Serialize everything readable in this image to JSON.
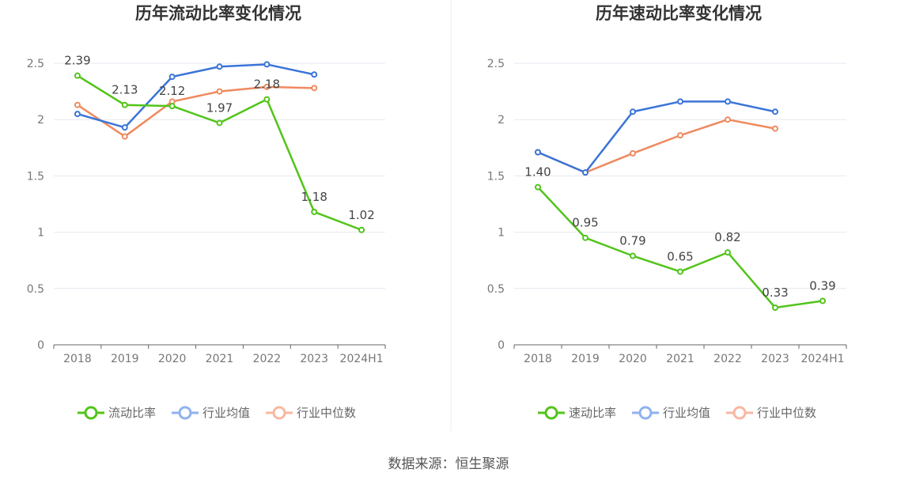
{
  "source_text": "数据来源：恒生聚源",
  "colors": {
    "company": "#52c41a",
    "industry_avg": "#3a74d8",
    "industry_median": "#ef8a5f",
    "legend_avg": "#8fb2ee",
    "legend_median": "#f9b7a1",
    "axis": "#666666",
    "grid": "#e6e9f0",
    "label": "#444444",
    "title": "#333333"
  },
  "chart_data": [
    {
      "type": "line",
      "title": "历年流动比率变化情况",
      "categories": [
        "2018",
        "2019",
        "2020",
        "2021",
        "2022",
        "2023",
        "2024H1"
      ],
      "ylim": [
        0,
        2.5
      ],
      "yticks": [
        "0",
        "0.5",
        "1",
        "1.5",
        "2",
        "2.5"
      ],
      "grid": true,
      "legend_position": "bottom",
      "series": [
        {
          "name": "流动比率",
          "color_key": "company",
          "legend_color_key": "company",
          "values": [
            2.39,
            2.13,
            2.12,
            1.97,
            2.18,
            1.18,
            1.02
          ],
          "labels": [
            "2.39",
            "2.13",
            "2.12",
            "1.97",
            "2.18",
            "1.18",
            "1.02"
          ]
        },
        {
          "name": "行业均值",
          "color_key": "industry_avg",
          "legend_color_key": "legend_avg",
          "values": [
            2.05,
            1.93,
            2.38,
            2.47,
            2.49,
            2.4,
            null
          ]
        },
        {
          "name": "行业中位数",
          "color_key": "industry_median",
          "legend_color_key": "legend_median",
          "values": [
            2.13,
            1.85,
            2.16,
            2.25,
            2.29,
            2.28,
            null
          ]
        }
      ]
    },
    {
      "type": "line",
      "title": "历年速动比率变化情况",
      "categories": [
        "2018",
        "2019",
        "2020",
        "2021",
        "2022",
        "2023",
        "2024H1"
      ],
      "ylim": [
        0,
        2.5
      ],
      "yticks": [
        "0",
        "0.5",
        "1",
        "1.5",
        "2",
        "2.5"
      ],
      "grid": true,
      "legend_position": "bottom",
      "series": [
        {
          "name": "速动比率",
          "color_key": "company",
          "legend_color_key": "company",
          "values": [
            1.4,
            0.95,
            0.79,
            0.65,
            0.82,
            0.33,
            0.39
          ],
          "labels": [
            "1.40",
            "0.95",
            "0.79",
            "0.65",
            "0.82",
            "0.33",
            "0.39"
          ]
        },
        {
          "name": "行业均值",
          "color_key": "industry_avg",
          "legend_color_key": "legend_avg",
          "values": [
            1.71,
            1.53,
            2.07,
            2.16,
            2.16,
            2.07,
            null
          ]
        },
        {
          "name": "行业中位数",
          "color_key": "industry_median",
          "legend_color_key": "legend_median",
          "values": [
            1.71,
            1.53,
            1.7,
            1.86,
            2.0,
            1.92,
            null
          ]
        }
      ]
    }
  ]
}
